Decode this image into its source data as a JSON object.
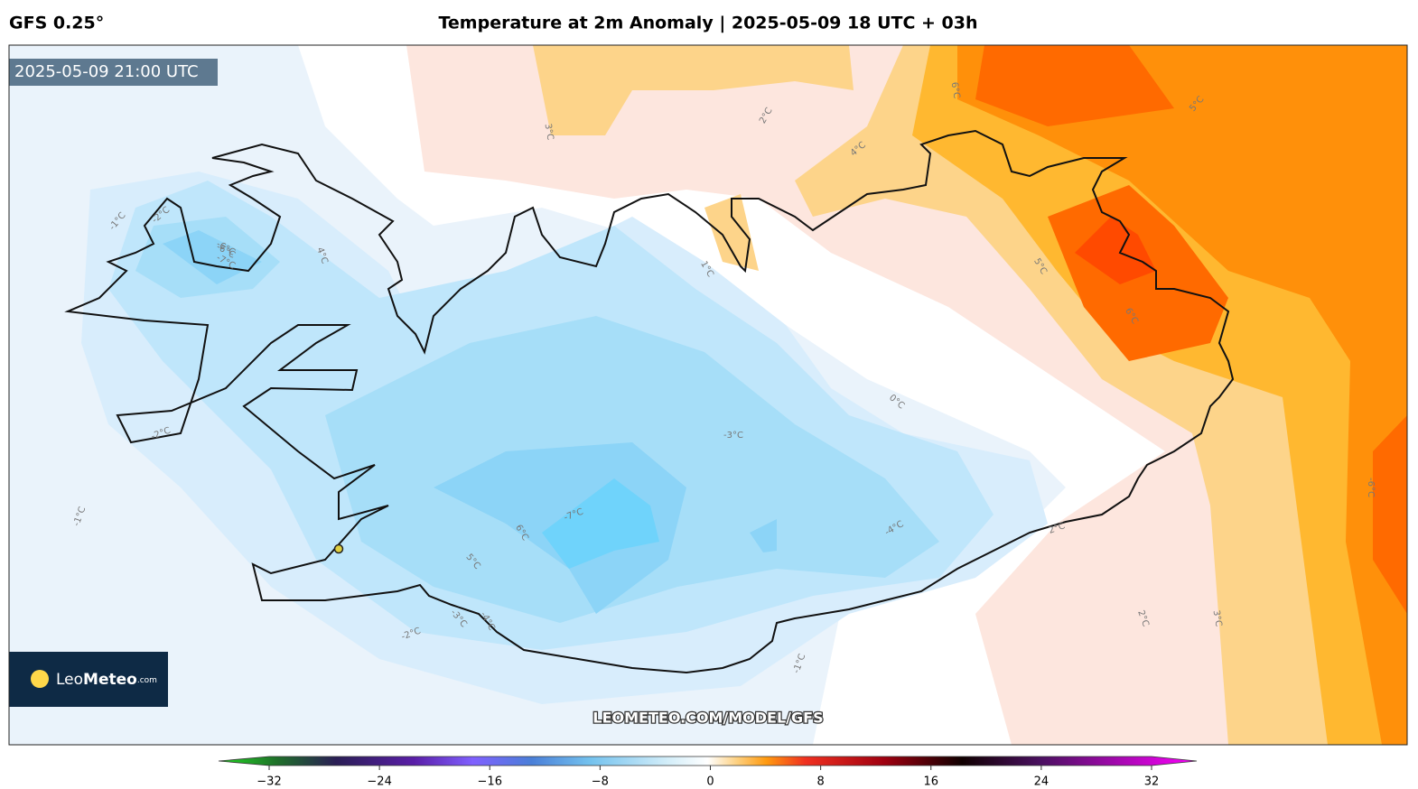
{
  "header": {
    "model": "GFS 0.25°",
    "title": "Temperature at 2m Anomaly | 2025-05-09 18 UTC + 03h"
  },
  "map": {
    "valid_time": "2025-05-09 21:00 UTC",
    "watermark": "LEOMETEO.COM/MODEL/GFS",
    "logo": {
      "light": "Leo",
      "bold": "Meteo",
      "suffix": ".com"
    },
    "contour_labels": [
      "-1°C",
      "-2°C",
      "-6°C",
      "-7°C",
      "4°C",
      "-2°C",
      "-1°C",
      "1°C",
      "3°C",
      "2°C",
      "4°C",
      "6°C",
      "5°C",
      "-3°C",
      "-6°C",
      "-7°C",
      "6°C",
      "5°C",
      "-3°C",
      "-2°C",
      "-4°C",
      "-4°C",
      "0°C",
      "-1°C",
      "2°C",
      "2°C",
      "3°C",
      "5°C",
      "6°C",
      "-6°C"
    ]
  },
  "colorbar": {
    "xlim": [
      -32,
      32
    ],
    "ticks": [
      {
        "value": -32,
        "label": "−32"
      },
      {
        "value": -24,
        "label": "−24"
      },
      {
        "value": -16,
        "label": "−16"
      },
      {
        "value": -8,
        "label": "−8"
      },
      0,
      8,
      16,
      24,
      32
    ]
  }
}
